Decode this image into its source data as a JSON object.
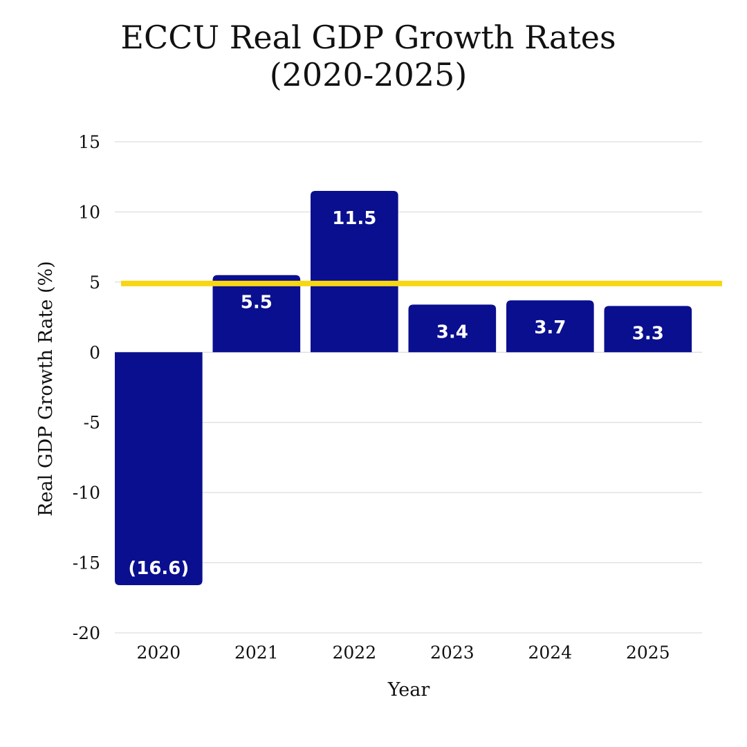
{
  "title_lines": [
    "ECCU Real GDP Growth Rates",
    "(2020-2025)"
  ],
  "colors": {
    "bar": "#0a0f8f",
    "reference_line": "#f7d613",
    "grid": "#d4d4d4"
  },
  "chart_data": {
    "type": "bar",
    "title": "ECCU Real GDP Growth Rates (2020-2025)",
    "xlabel": "Year",
    "ylabel": "Real GDP Growth Rate (%)",
    "categories": [
      "2020",
      "2021",
      "2022",
      "2023",
      "2024",
      "2025"
    ],
    "values": [
      -16.6,
      5.5,
      11.5,
      3.4,
      3.7,
      3.3
    ],
    "data_labels": [
      "(16.6)",
      "5.5",
      "11.5",
      "3.4",
      "3.7",
      "3.3"
    ],
    "ylim": [
      -20,
      15
    ],
    "yticks": [
      15,
      10,
      5,
      0,
      -5,
      -10,
      -15,
      -20
    ],
    "reference_line": 4.9,
    "grid": true,
    "legend": "none"
  }
}
